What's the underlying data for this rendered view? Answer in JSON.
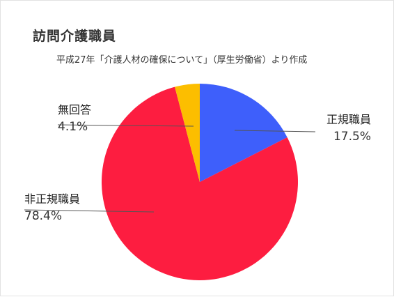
{
  "chart_data": {
    "type": "pie",
    "title": "訪問介護職員",
    "subtitle": "平成27年「介護人材の確保について」（厚生労働省）より作成",
    "start_angle_deg": 0,
    "direction": "clockwise",
    "slices": [
      {
        "label": "正規職員",
        "value": 17.5,
        "value_label": "17.5%",
        "color": "#3e5ffb"
      },
      {
        "label": "非正規職員",
        "value": 78.4,
        "value_label": "78.4%",
        "color": "#fd1d40"
      },
      {
        "label": "無回答",
        "value": 4.1,
        "value_label": "4.1%",
        "color": "#fcbe00"
      }
    ]
  }
}
